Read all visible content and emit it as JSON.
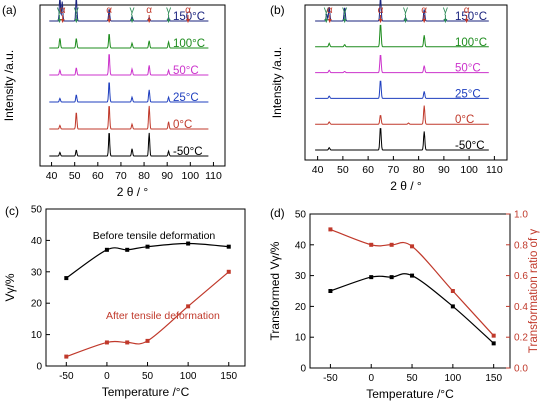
{
  "chart_data": [
    {
      "panel": "(a)",
      "type": "line",
      "title": "",
      "xlabel": "2 θ / °",
      "ylabel": "Intensity /a.u.",
      "xlim": [
        35,
        115
      ],
      "xticks": [
        40,
        50,
        60,
        70,
        80,
        90,
        100,
        110
      ],
      "grid": false,
      "series": [
        {
          "name": "-50°C",
          "color": "#000000",
          "peaks": [
            [
              43.6,
              0.15
            ],
            [
              50.7,
              0.25
            ],
            [
              64.9,
              1.0
            ],
            [
              74.8,
              0.3
            ],
            [
              82.2,
              0.95
            ],
            [
              90.6,
              0.2
            ]
          ]
        },
        {
          "name": "0°C",
          "color": "#c0392b",
          "peaks": [
            [
              43.6,
              0.15
            ],
            [
              50.7,
              0.7
            ],
            [
              64.9,
              1.0
            ],
            [
              74.8,
              0.2
            ],
            [
              82.2,
              0.95
            ],
            [
              90.6,
              0.3
            ]
          ]
        },
        {
          "name": "25°C",
          "color": "#1f3fbf",
          "peaks": [
            [
              43.6,
              0.15
            ],
            [
              50.7,
              0.3
            ],
            [
              64.9,
              0.85
            ],
            [
              74.8,
              0.2
            ],
            [
              82.2,
              0.5
            ],
            [
              90.6,
              0.2
            ]
          ]
        },
        {
          "name": "50°C",
          "color": "#cc33cc",
          "peaks": [
            [
              43.6,
              0.2
            ],
            [
              50.7,
              0.3
            ],
            [
              64.9,
              0.9
            ],
            [
              74.8,
              0.25
            ],
            [
              82.2,
              0.4
            ],
            [
              90.6,
              0.2
            ]
          ]
        },
        {
          "name": "100°C",
          "color": "#1e8c1e",
          "peaks": [
            [
              43.6,
              0.4
            ],
            [
              50.7,
              0.4
            ],
            [
              64.9,
              0.6
            ],
            [
              74.8,
              0.2
            ],
            [
              82.2,
              0.3
            ],
            [
              90.6,
              0.25
            ]
          ]
        },
        {
          "name": "150°C",
          "color": "#1a237e",
          "peaks": [
            [
              43.6,
              1.0
            ],
            [
              44.6,
              0.8
            ],
            [
              50.7,
              1.0
            ],
            [
              64.9,
              0.5
            ],
            [
              74.8,
              0.2
            ],
            [
              82.2,
              0.15
            ],
            [
              90.6,
              0.15
            ],
            [
              99,
              0.1
            ]
          ]
        }
      ],
      "markers": [
        {
          "label": "γ",
          "x": 43.4,
          "color": "#2e8b57"
        },
        {
          "label": "α",
          "x": 44.8,
          "color": "#c0392b"
        },
        {
          "label": "γ",
          "x": 50.7,
          "color": "#2e8b57"
        },
        {
          "label": "α",
          "x": 64.9,
          "color": "#c0392b"
        },
        {
          "label": "γ",
          "x": 74.8,
          "color": "#2e8b57"
        },
        {
          "label": "α",
          "x": 82.2,
          "color": "#c0392b"
        },
        {
          "label": "γ",
          "x": 90.6,
          "color": "#2e8b57"
        },
        {
          "label": "α",
          "x": 99.0,
          "color": "#c0392b"
        }
      ]
    },
    {
      "panel": "(b)",
      "type": "line",
      "title": "",
      "xlabel": "2 θ / °",
      "ylabel": "Intensity /a.u.",
      "xlim": [
        35,
        115
      ],
      "xticks": [
        40,
        50,
        60,
        70,
        80,
        90,
        100,
        110
      ],
      "grid": false,
      "series": [
        {
          "name": "-50°C",
          "color": "#000000",
          "peaks": [
            [
              44.6,
              0.1
            ],
            [
              64.9,
              1.0
            ],
            [
              82.2,
              0.8
            ]
          ]
        },
        {
          "name": "0°C",
          "color": "#c0392b",
          "peaks": [
            [
              44.6,
              0.1
            ],
            [
              64.9,
              0.4
            ],
            [
              76,
              0.05
            ],
            [
              82.2,
              0.8
            ]
          ]
        },
        {
          "name": "25°C",
          "color": "#1f3fbf",
          "peaks": [
            [
              44.6,
              0.1
            ],
            [
              64.9,
              0.8
            ],
            [
              82.2,
              0.3
            ]
          ]
        },
        {
          "name": "50°C",
          "color": "#cc33cc",
          "peaks": [
            [
              44.6,
              0.1
            ],
            [
              50.7,
              0.05
            ],
            [
              64.9,
              0.8
            ],
            [
              82.2,
              0.3
            ]
          ]
        },
        {
          "name": "100°C",
          "color": "#1e8c1e",
          "peaks": [
            [
              44.6,
              0.15
            ],
            [
              50.7,
              0.1
            ],
            [
              64.9,
              1.0
            ],
            [
              82.2,
              0.5
            ]
          ]
        },
        {
          "name": "150°C",
          "color": "#1a237e",
          "peaks": [
            [
              43.6,
              0.3
            ],
            [
              44.6,
              0.6
            ],
            [
              50.7,
              0.6
            ],
            [
              64.9,
              1.0
            ],
            [
              74.8,
              0.15
            ],
            [
              82.2,
              0.5
            ],
            [
              90.6,
              0.1
            ],
            [
              99,
              0.05
            ]
          ]
        }
      ],
      "markers": [
        {
          "label": "γ",
          "x": 43.4,
          "color": "#2e8b57"
        },
        {
          "label": "α",
          "x": 44.8,
          "color": "#c0392b"
        },
        {
          "label": "γ",
          "x": 50.7,
          "color": "#2e8b57"
        },
        {
          "label": "α",
          "x": 64.9,
          "color": "#c0392b"
        },
        {
          "label": "γ",
          "x": 74.8,
          "color": "#2e8b57"
        },
        {
          "label": "α",
          "x": 82.2,
          "color": "#c0392b"
        },
        {
          "label": "γ",
          "x": 90.6,
          "color": "#2e8b57"
        },
        {
          "label": "α",
          "x": 99.0,
          "color": "#c0392b"
        }
      ]
    },
    {
      "panel": "(c)",
      "type": "line",
      "title": "",
      "xlabel": "Temperature /°C",
      "ylabel": "Vγ/%",
      "xlim": [
        -75,
        170
      ],
      "ylim": [
        0,
        50
      ],
      "xticks": [
        -50,
        0,
        50,
        100,
        150
      ],
      "yticks": [
        0,
        10,
        20,
        30,
        40,
        50
      ],
      "grid": false,
      "x": [
        -50,
        0,
        25,
        50,
        100,
        150
      ],
      "series": [
        {
          "name": "Before tensile deformation",
          "color": "#000000",
          "values": [
            28,
            37,
            37,
            38,
            39,
            38
          ]
        },
        {
          "name": "After  tensile deformation",
          "color": "#c0392b",
          "values": [
            3,
            7.5,
            7.5,
            8,
            19,
            30
          ]
        }
      ]
    },
    {
      "panel": "(d)",
      "type": "line",
      "title": "",
      "xlabel": "Temperature /°C",
      "ylabel": "Transformed Vγ/%",
      "y2label": "Transformation ratio of γ",
      "xlim": [
        -75,
        170
      ],
      "ylim": [
        0,
        50
      ],
      "y2lim": [
        0,
        1.0
      ],
      "xticks": [
        -50,
        0,
        50,
        100,
        150
      ],
      "yticks": [
        0,
        10,
        20,
        30,
        40,
        50
      ],
      "y2ticks": [
        0.0,
        0.2,
        0.4,
        0.6,
        0.8,
        1.0
      ],
      "grid": false,
      "x": [
        -50,
        0,
        25,
        50,
        100,
        150
      ],
      "series": [
        {
          "axis": "left",
          "color": "#000000",
          "values": [
            25,
            29.5,
            29.5,
            30,
            20,
            8
          ]
        },
        {
          "axis": "right",
          "color": "#c0392b",
          "values": [
            0.9,
            0.8,
            0.8,
            0.79,
            0.5,
            0.21
          ]
        }
      ]
    }
  ]
}
